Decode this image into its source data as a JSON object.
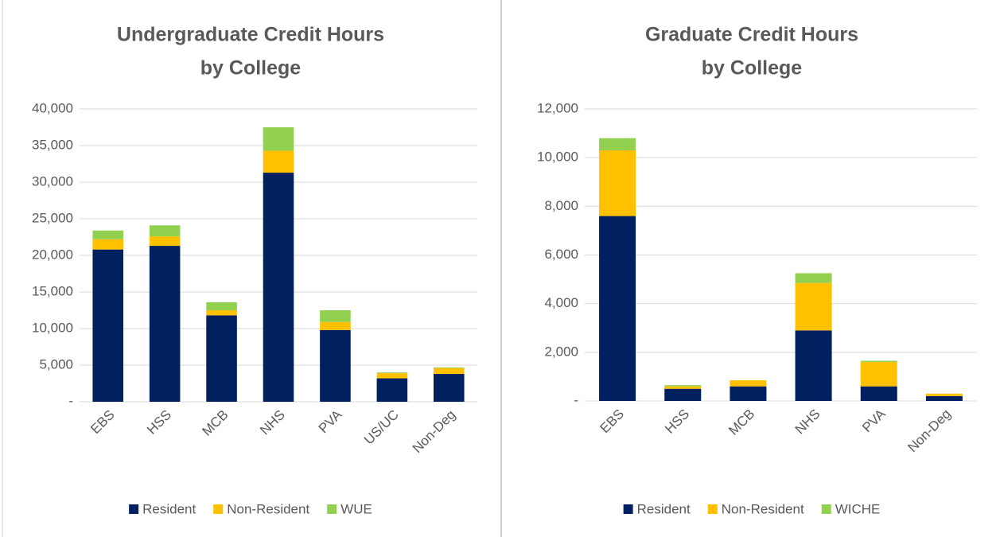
{
  "chart_data": [
    {
      "type": "stacked-bar",
      "title": [
        "Undergraduate Credit Hours",
        "by College"
      ],
      "categories": [
        "EBS",
        "HSS",
        "MCB",
        "NHS",
        "PVA",
        "US/UC",
        "Non-Deg"
      ],
      "series": [
        {
          "name": "Resident",
          "color": "#002060",
          "values": [
            20800,
            21300,
            11800,
            31300,
            9800,
            3200,
            3800
          ]
        },
        {
          "name": "Non-Resident",
          "color": "#ffc000",
          "values": [
            1400,
            1300,
            700,
            3000,
            1100,
            700,
            800
          ]
        },
        {
          "name": "WUE",
          "color": "#92d050",
          "values": [
            1200,
            1500,
            1100,
            3200,
            1600,
            100,
            100
          ]
        }
      ],
      "ylim": [
        0,
        40000
      ],
      "yticks": [
        {
          "value": 0,
          "label": "-"
        },
        {
          "value": 5000,
          "label": "5,000"
        },
        {
          "value": 10000,
          "label": "10,000"
        },
        {
          "value": 15000,
          "label": "15,000"
        },
        {
          "value": 20000,
          "label": "20,000"
        },
        {
          "value": 25000,
          "label": "25,000"
        },
        {
          "value": 30000,
          "label": "30,000"
        },
        {
          "value": 35000,
          "label": "35,000"
        },
        {
          "value": 40000,
          "label": "40,000"
        }
      ],
      "grid": true,
      "legend": "bottom"
    },
    {
      "type": "stacked-bar",
      "title": [
        "Graduate Credit Hours",
        "by College"
      ],
      "categories": [
        "EBS",
        "HSS",
        "MCB",
        "NHS",
        "PVA",
        "Non-Deg"
      ],
      "series": [
        {
          "name": "Resident",
          "color": "#002060",
          "values": [
            7600,
            500,
            600,
            2900,
            600,
            200
          ]
        },
        {
          "name": "Non-Resident",
          "color": "#ffc000",
          "values": [
            2700,
            100,
            250,
            1950,
            1000,
            100
          ]
        },
        {
          "name": "WICHE",
          "color": "#92d050",
          "values": [
            500,
            50,
            0,
            400,
            50,
            0
          ]
        }
      ],
      "ylim": [
        0,
        12000
      ],
      "yticks": [
        {
          "value": 0,
          "label": "-"
        },
        {
          "value": 2000,
          "label": "2,000"
        },
        {
          "value": 4000,
          "label": "4,000"
        },
        {
          "value": 6000,
          "label": "6,000"
        },
        {
          "value": 8000,
          "label": "8,000"
        },
        {
          "value": 10000,
          "label": "10,000"
        },
        {
          "value": 12000,
          "label": "12,000"
        }
      ],
      "grid": true,
      "legend": "bottom"
    }
  ]
}
